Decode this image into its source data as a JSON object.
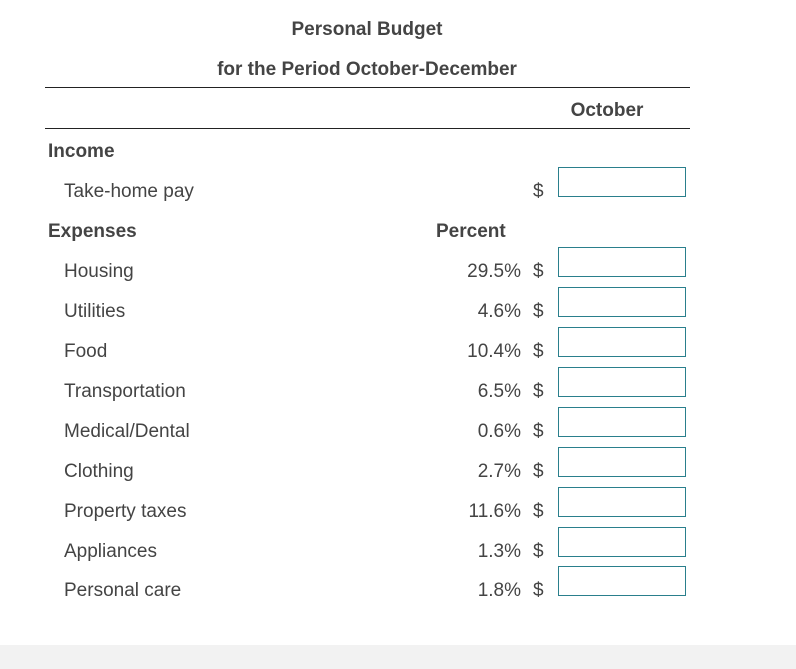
{
  "header": {
    "title": "Personal Budget",
    "subtitle": "for the Period October-December",
    "column": "October"
  },
  "income": {
    "label": "Income",
    "rows": [
      {
        "label": "Take-home pay",
        "currency": "$"
      }
    ]
  },
  "expenses": {
    "label": "Expenses",
    "percent_header": "Percent",
    "rows": [
      {
        "label": "Housing",
        "percent": "29.5%",
        "currency": "$"
      },
      {
        "label": "Utilities",
        "percent": "4.6%",
        "currency": "$"
      },
      {
        "label": "Food",
        "percent": "10.4%",
        "currency": "$"
      },
      {
        "label": "Transportation",
        "percent": "6.5%",
        "currency": "$"
      },
      {
        "label": "Medical/Dental",
        "percent": "0.6%",
        "currency": "$"
      },
      {
        "label": "Clothing",
        "percent": "2.7%",
        "currency": "$"
      },
      {
        "label": "Property taxes",
        "percent": "11.6%",
        "currency": "$"
      },
      {
        "label": "Appliances",
        "percent": "1.3%",
        "currency": "$"
      },
      {
        "label": "Personal care",
        "percent": "1.8%",
        "currency": "$"
      }
    ]
  }
}
